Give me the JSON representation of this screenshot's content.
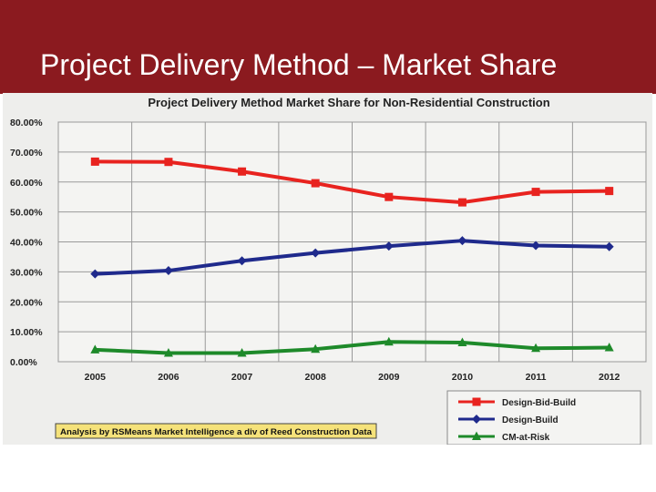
{
  "slide": {
    "title": "Project Delivery Method – Market Share"
  },
  "chart_data": {
    "type": "line",
    "title": "Project Delivery Method Market Share for Non-Residential Construction",
    "xlabel": "",
    "ylabel": "",
    "categories": [
      "2005",
      "2006",
      "2007",
      "2008",
      "2009",
      "2010",
      "2011",
      "2012"
    ],
    "ylim": [
      0,
      80
    ],
    "yticks": [
      0,
      10,
      20,
      30,
      40,
      50,
      60,
      70,
      80
    ],
    "ytick_labels": [
      "0.00%",
      "10.00%",
      "20.00%",
      "30.00%",
      "40.00%",
      "50.00%",
      "60.00%",
      "70.00%",
      "80.00%"
    ],
    "grid": true,
    "legend_position": "bottom-right",
    "series": [
      {
        "name": "Design-Bid-Build",
        "color": "#e8231f",
        "marker": "square",
        "values": [
          66.8,
          66.7,
          63.5,
          59.6,
          55.0,
          53.2,
          56.7,
          57.0
        ]
      },
      {
        "name": "Design-Build",
        "color": "#1f2a8c",
        "marker": "diamond",
        "values": [
          29.3,
          30.4,
          33.7,
          36.3,
          38.6,
          40.4,
          38.8,
          38.4
        ]
      },
      {
        "name": "CM-at-Risk",
        "color": "#1e8a2a",
        "marker": "triangle",
        "values": [
          4.0,
          2.9,
          2.9,
          4.2,
          6.6,
          6.4,
          4.5,
          4.7
        ]
      }
    ],
    "annotation": "Analysis by RSMeans Market Intelligence a div of Reed Construction Data"
  }
}
